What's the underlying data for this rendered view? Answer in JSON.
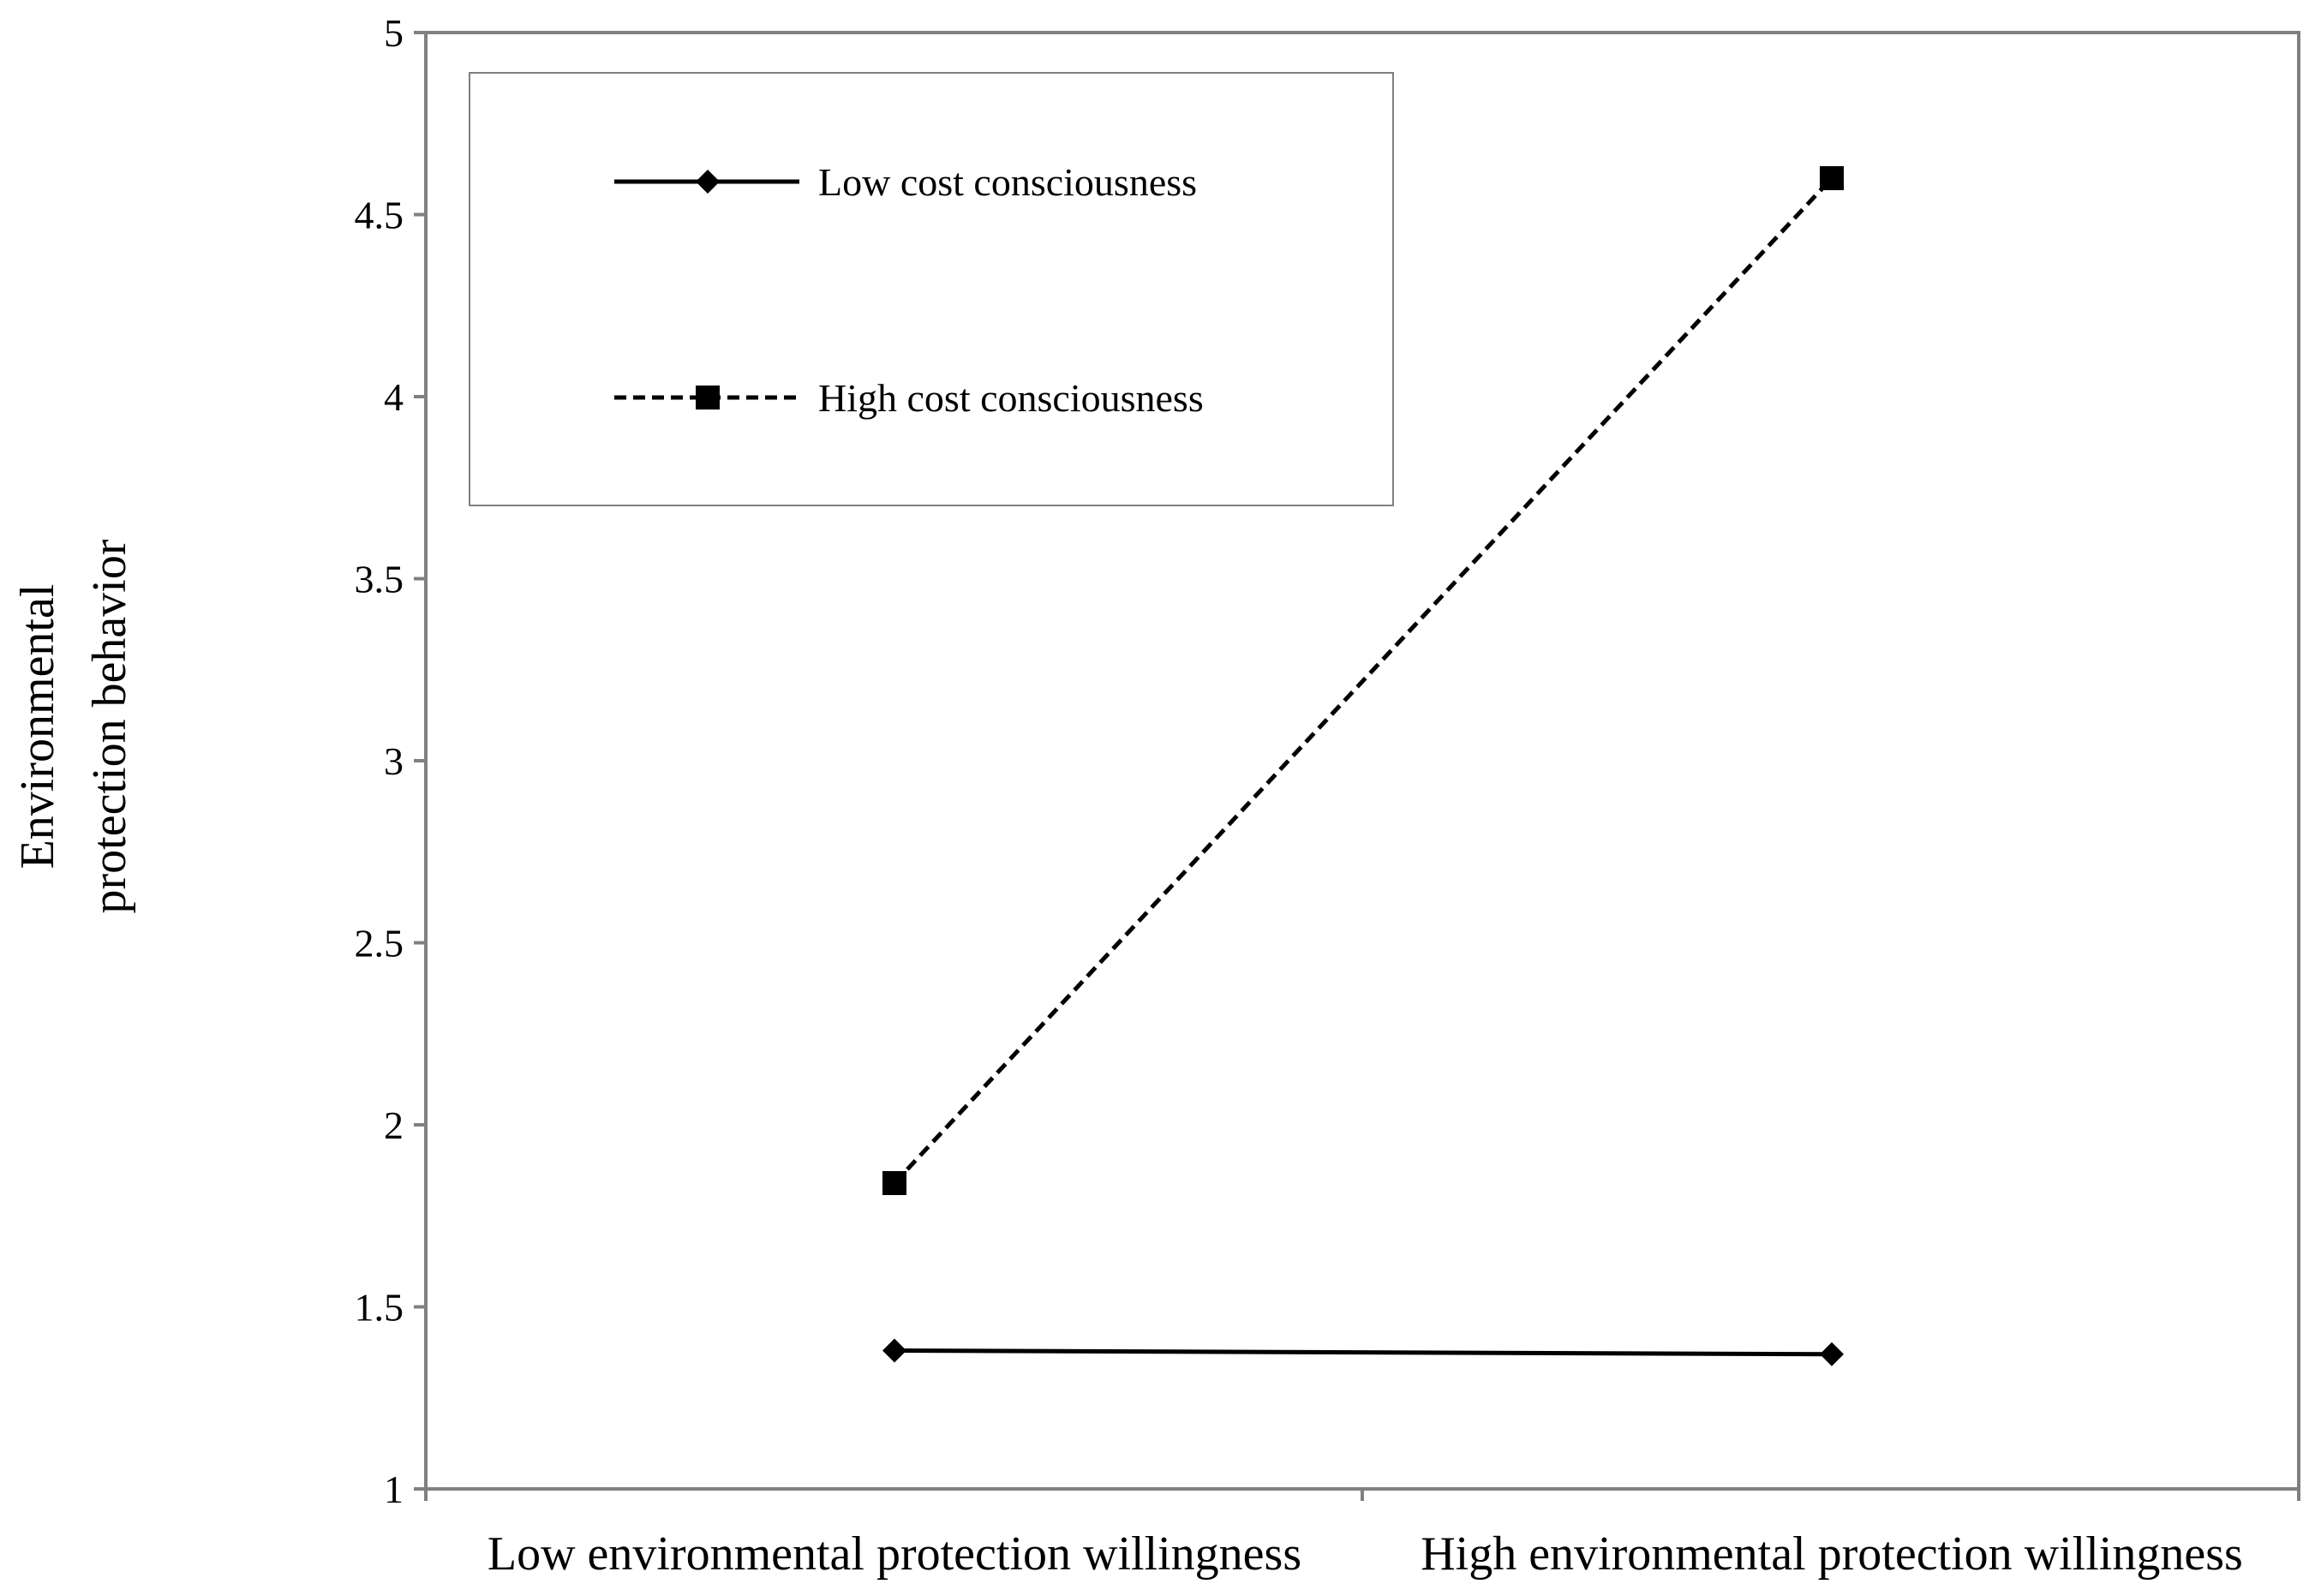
{
  "chart_data": {
    "type": "line",
    "title": "",
    "xlabel": "",
    "ylabel_lines": [
      "Environmental",
      "protection behavior"
    ],
    "categories": [
      "Low environmental protection willingness",
      "High environmental protection willingness"
    ],
    "ylim": [
      1,
      5
    ],
    "yticks": [
      "1",
      "1.5",
      "2",
      "2.5",
      "3",
      "3.5",
      "4",
      "4.5",
      "5"
    ],
    "grid": false,
    "legend_position": "top-left",
    "series": [
      {
        "name": "Low cost consciousness",
        "values": [
          1.38,
          1.37
        ],
        "line_style": "solid",
        "marker": "diamond",
        "color": "#000000"
      },
      {
        "name": "High cost consciousness",
        "values": [
          1.84,
          4.6
        ],
        "line_style": "dashed",
        "marker": "square",
        "color": "#000000"
      }
    ]
  }
}
